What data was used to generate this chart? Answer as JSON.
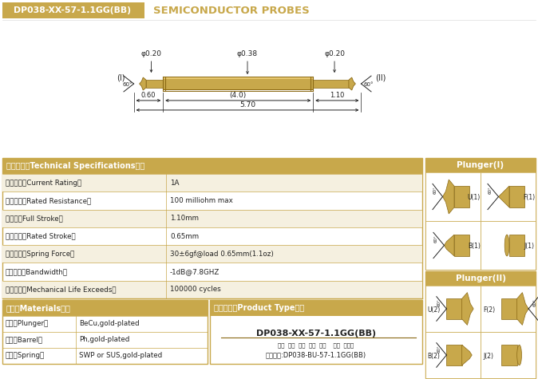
{
  "title_box_text": "DP038-XX-57-1.1GG(BB)",
  "title_box_color": "#C8A84B",
  "title_right_text": "SEMICONDUCTOR PROBES",
  "bg_color": "#FFFFFF",
  "gold_color": "#C8A84B",
  "gold_dark": "#8B6914",
  "gold_light": "#E8C870",
  "text_color": "#222222",
  "specs_header": "技术要求（Technical Specifications）：",
  "specs": [
    [
      "额定电流（Current Rating）",
      "1A"
    ],
    [
      "额定电阻（Rated Resistance）",
      "100 milliohm max"
    ],
    [
      "满行程（Full Stroke）",
      "1.10mm"
    ],
    [
      "额定行程（Rated Stroke）",
      "0.65mm"
    ],
    [
      "额定弹力（Spring Force）",
      "30±6gf@load 0.65mm(1.1oz)"
    ],
    [
      "频率带宽（Bandwidth）",
      "-1dB@7.8GHZ"
    ],
    [
      "测试寿命（Mechanical Life Exceeds）",
      "100000 cycles"
    ]
  ],
  "materials_title": "材质（Materials）：",
  "materials": [
    [
      "针头（Plunger）",
      "BeCu,gold-plated"
    ],
    [
      "针管（Barrel）",
      "Ph,gold-plated"
    ],
    [
      "弹簧（Spring）",
      "SWP or SUS,gold-plated"
    ]
  ],
  "product_title": "成品型号（Product Type）：",
  "product_code": "DP038-XX-57-1.1GG(BB)",
  "product_labels": "系列  规格  头型  总长  弹力    镌金  针头模",
  "product_example": "订购举例:DP038-BU-57-1.1GG(BB)",
  "plunger1_title": "Plunger(I)",
  "plunger2_title": "Plunger(II)",
  "plunger_types_1": [
    [
      "U(1)",
      "F(1)"
    ],
    [
      "B(1)",
      "J(1)"
    ]
  ],
  "plunger_types_2": [
    [
      "U(2)",
      "F(2)"
    ],
    [
      "B(2)",
      "J(2)"
    ]
  ]
}
